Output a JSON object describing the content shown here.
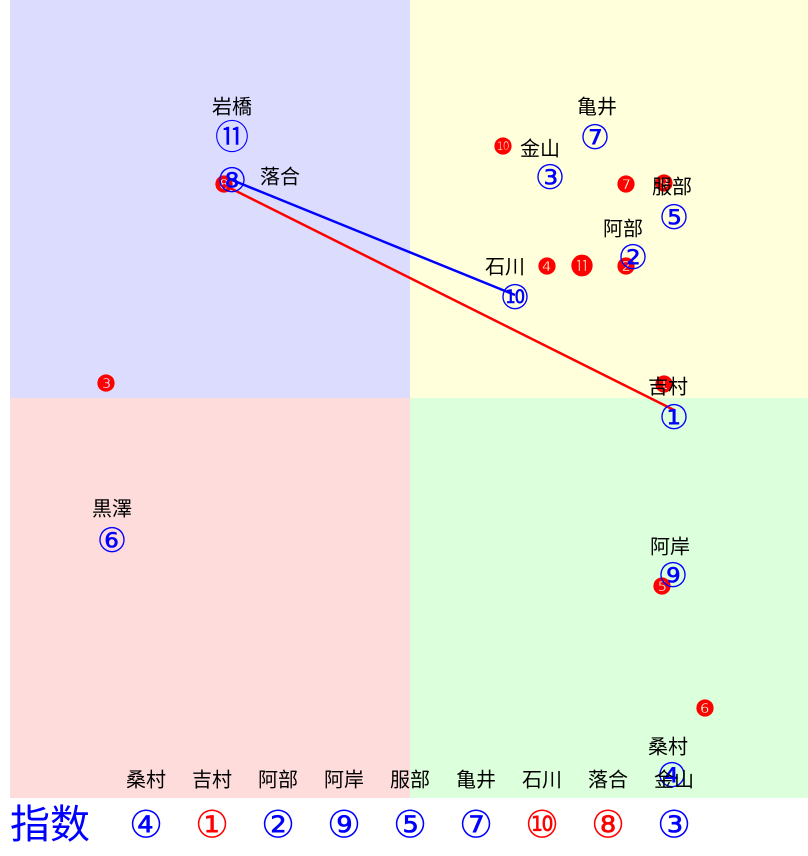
{
  "nodes": [
    {
      "label": "岩橋",
      "symbol": "⑪"
    },
    {
      "label": "落合",
      "symbol": "⑧"
    },
    {
      "label": "亀井",
      "symbol": "⑦"
    },
    {
      "label": "金山",
      "symbol": "③"
    },
    {
      "label": "服部",
      "symbol": "⑤"
    },
    {
      "label": "阿部",
      "symbol": "②"
    },
    {
      "label": "石川",
      "symbol": "⑩"
    },
    {
      "label": "吉村",
      "symbol": "①"
    },
    {
      "label": "黒澤",
      "symbol": "⑥"
    },
    {
      "label": "阿岸",
      "symbol": "⑨"
    },
    {
      "label": "桑村",
      "symbol": "④"
    }
  ],
  "red_markers": [
    "❿",
    "❽",
    "❼",
    "❾",
    "❹",
    "⓫",
    "❷",
    "❸",
    "❶",
    "❺",
    "❻"
  ],
  "footer": {
    "names": [
      "桑村",
      "吉村",
      "阿部",
      "阿岸",
      "服部",
      "亀井",
      "石川",
      "落合",
      "金山"
    ],
    "title": "指数",
    "indices": [
      {
        "symbol": "④",
        "color": "#0000ff"
      },
      {
        "symbol": "①",
        "color": "#ff0000"
      },
      {
        "symbol": "②",
        "color": "#0000ff"
      },
      {
        "symbol": "⑨",
        "color": "#0000ff"
      },
      {
        "symbol": "⑤",
        "color": "#0000ff"
      },
      {
        "symbol": "⑦",
        "color": "#0000ff"
      },
      {
        "symbol": "⑩",
        "color": "#ff0000"
      },
      {
        "symbol": "⑧",
        "color": "#ff0000"
      },
      {
        "symbol": "③",
        "color": "#0000ff"
      }
    ]
  }
}
